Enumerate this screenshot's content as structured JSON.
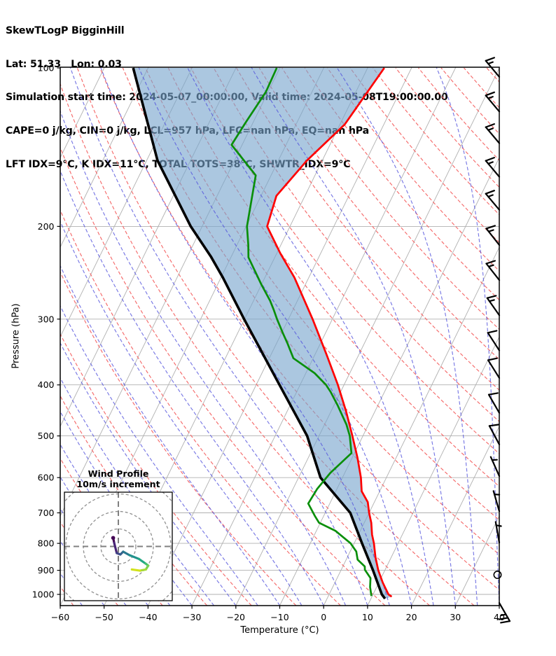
{
  "header": {
    "line1": "SkewTLogP BigginHill",
    "line2": "Lat: 51.33   Lon: 0.03",
    "line3": "Simulation start time: 2024-05-07_00:00:00, Valid time: 2024-05-08T19:00:00.00",
    "line4": "CAPE=0 j/kg, CIN=0 j/kg, LCL=957 hPa, LFC=nan hPa, EQ=nan hPa",
    "line5": "LFT IDX=9°C, K IDX=11°C, TOTAL TOTS=38°C, SHWTR_IDX=9°C"
  },
  "axes": {
    "x_label": "Temperature (°C)",
    "y_label": "Pressure (hPa)",
    "x_ticks": [
      -60,
      -50,
      -40,
      -30,
      -20,
      -10,
      0,
      10,
      20,
      30,
      40
    ],
    "y_ticks": [
      100,
      200,
      300,
      400,
      500,
      600,
      700,
      800,
      900,
      1000
    ],
    "x_range": [
      -60,
      40
    ],
    "p_range": [
      100,
      1050
    ]
  },
  "hodograph": {
    "title_line1": "Wind Profile",
    "title_line2": "10m/s increment",
    "ring_radii_ms": [
      10,
      20,
      30,
      40
    ],
    "ms_per_ring": 10,
    "trace_uv_ms": [
      [
        -2.96,
        4.9
      ],
      [
        -2.4,
        2.17
      ],
      [
        -0.92,
        -3.78
      ],
      [
        1.17,
        -4.59
      ],
      [
        2.77,
        -2.98
      ],
      [
        6.41,
        -5.02
      ],
      [
        11.7,
        -7.13
      ],
      [
        15.58,
        -9.8
      ],
      [
        17.06,
        -10.97
      ],
      [
        15.71,
        -13.14
      ],
      [
        12.38,
        -13.83
      ],
      [
        7.7,
        -13.14
      ]
    ],
    "trace_colors": [
      "#440154",
      "#482475",
      "#414487",
      "#355f8d",
      "#2a788e",
      "#21918c",
      "#22a884",
      "#44bf70",
      "#7ad151",
      "#a5db36",
      "#d2e21b",
      "#fde725"
    ]
  },
  "chart_data": {
    "type": "line",
    "subtype": "skewt-logp",
    "title": "SkewTLogP BigginHill",
    "xlabel": "Temperature (°C)",
    "ylabel": "Pressure (hPa)",
    "xlim": [
      -60,
      40
    ],
    "ylim_hpa": [
      1050,
      100
    ],
    "y_scale": "log",
    "grid": "skewt background: isobars, skewed isotherms, dry adiabats, moist adiabats",
    "series": [
      {
        "name": "temperature",
        "points_p_t": [
          [
            1010,
            14.5
          ],
          [
            1000,
            13.5
          ],
          [
            950,
            10.9
          ],
          [
            900,
            8.5
          ],
          [
            850,
            6.4
          ],
          [
            800,
            4.5
          ],
          [
            770,
            3.1
          ],
          [
            731,
            1.6
          ],
          [
            700,
            0.0
          ],
          [
            668,
            -1.5
          ],
          [
            637,
            -4.1
          ],
          [
            600,
            -5.8
          ],
          [
            550,
            -8.8
          ],
          [
            500,
            -12.4
          ],
          [
            450,
            -16.5
          ],
          [
            400,
            -21.4
          ],
          [
            350,
            -27.4
          ],
          [
            300,
            -34.5
          ],
          [
            250,
            -43.3
          ],
          [
            225,
            -49.2
          ],
          [
            200,
            -55.2
          ],
          [
            175,
            -56.5
          ],
          [
            150,
            -53.5
          ],
          [
            128,
            -48.9
          ],
          [
            100,
            -46.2
          ]
        ]
      },
      {
        "name": "dewpoint",
        "points_p_t": [
          [
            1007,
            9.8
          ],
          [
            968,
            8.5
          ],
          [
            931,
            7.6
          ],
          [
            898,
            5.4
          ],
          [
            885,
            5.0
          ],
          [
            859,
            2.6
          ],
          [
            829,
            1.4
          ],
          [
            800,
            -0.8
          ],
          [
            757,
            -5.7
          ],
          [
            731,
            -10.3
          ],
          [
            711,
            -11.9
          ],
          [
            672,
            -14.9
          ],
          [
            630,
            -14.5
          ],
          [
            588,
            -13.3
          ],
          [
            539,
            -10.7
          ],
          [
            500,
            -13.0
          ],
          [
            476,
            -15.0
          ],
          [
            438,
            -19.1
          ],
          [
            413,
            -22.2
          ],
          [
            400,
            -24.1
          ],
          [
            380,
            -28.0
          ],
          [
            356,
            -34.5
          ],
          [
            333,
            -37.6
          ],
          [
            319,
            -39.7
          ],
          [
            300,
            -42.6
          ],
          [
            288,
            -44.4
          ],
          [
            277,
            -46.2
          ],
          [
            258,
            -50.0
          ],
          [
            229,
            -56.0
          ],
          [
            217,
            -57.4
          ],
          [
            200,
            -59.8
          ],
          [
            160,
            -63.5
          ],
          [
            140,
            -72.4
          ],
          [
            127,
            -71.7
          ],
          [
            111,
            -70.5
          ],
          [
            100,
            -70.7
          ]
        ]
      },
      {
        "name": "parcel",
        "points_p_t": [
          [
            1019,
            13.2
          ],
          [
            1000,
            12.0
          ],
          [
            900,
            7.3
          ],
          [
            800,
            1.8
          ],
          [
            700,
            -4.3
          ],
          [
            600,
            -15.0
          ],
          [
            500,
            -22.7
          ],
          [
            400,
            -34.7
          ],
          [
            300,
            -50.1
          ],
          [
            250,
            -59.6
          ],
          [
            228,
            -64.7
          ],
          [
            200,
            -72.6
          ],
          [
            150,
            -87.5
          ],
          [
            100,
            -103.4
          ]
        ]
      }
    ],
    "wind_barbs": [
      {
        "p": 104,
        "speed": 15,
        "angle": -40
      },
      {
        "p": 121,
        "speed": 15,
        "angle": -40
      },
      {
        "p": 139,
        "speed": 15,
        "angle": -40
      },
      {
        "p": 161,
        "speed": 15,
        "angle": -40
      },
      {
        "p": 186,
        "speed": 15,
        "angle": -40
      },
      {
        "p": 217,
        "speed": 15,
        "angle": -38
      },
      {
        "p": 253,
        "speed": 15,
        "angle": -38
      },
      {
        "p": 295,
        "speed": 15,
        "angle": -35
      },
      {
        "p": 344,
        "speed": 10,
        "angle": -33
      },
      {
        "p": 388,
        "speed": 10,
        "angle": -32
      },
      {
        "p": 452,
        "speed": 10,
        "angle": -30
      },
      {
        "p": 519,
        "speed": 10,
        "angle": -28
      },
      {
        "p": 596,
        "speed": 5,
        "angle": -24
      },
      {
        "p": 695,
        "speed": 5,
        "angle": -16
      },
      {
        "p": 797,
        "speed": 5,
        "angle": -10
      },
      {
        "p": 918,
        "speed": 0,
        "angle": 0
      },
      {
        "p": 1038,
        "speed": 25,
        "angle": 150
      }
    ],
    "background": {
      "isotherms_c": {
        "start": -150,
        "end": 40,
        "step": 10
      },
      "dry_adiabats_c": {
        "start": -60,
        "end": 220,
        "step": 10
      },
      "moist_adiabats_c": {
        "start": -60,
        "end": 45,
        "step": 5
      },
      "isobars_hpa": [
        200,
        300,
        400,
        500,
        600,
        700,
        800,
        900,
        1000
      ]
    }
  },
  "style": {
    "temperature_color": "#ff0000",
    "dewpoint_color": "#0a8f0a",
    "parcel_color": "#000000",
    "cape_fill": "rgba(120,165,205,0.62)",
    "isotherm_color": "#b0b0b0",
    "isobar_color": "#b0b0b0",
    "dry_adiabat_color": "#f56b6b",
    "moist_adiabat_color": "#5252dd",
    "spine_color": "#000000",
    "barb_color": "#000000",
    "hodo_ring_color": "#909090",
    "hodo_cross_color": "#808080"
  }
}
